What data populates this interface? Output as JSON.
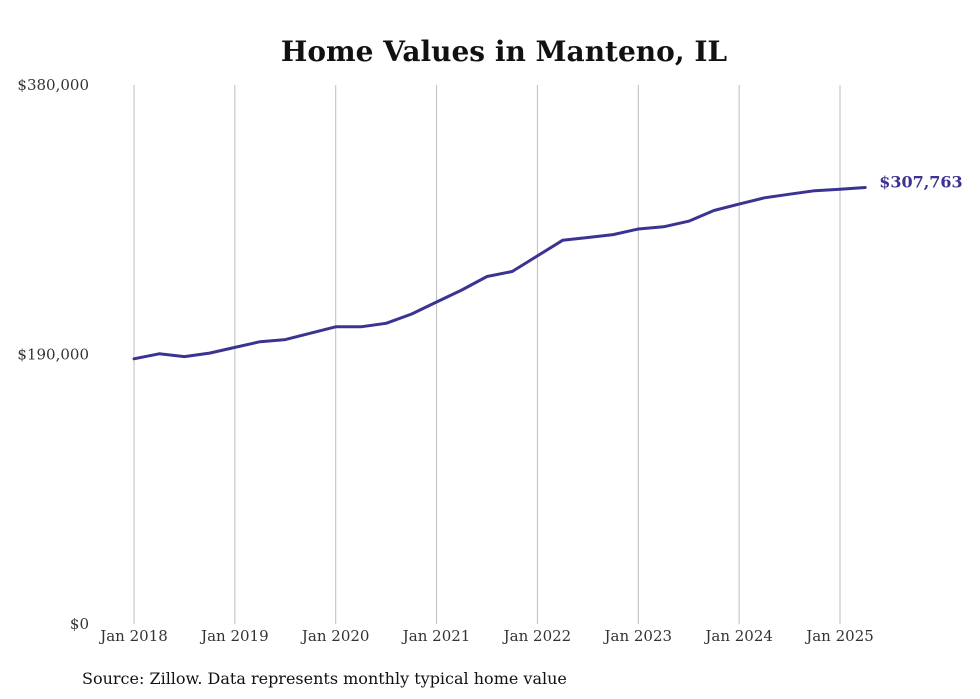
{
  "chart_data": {
    "type": "line",
    "title": "Home Values in Manteno, IL",
    "source": "Source: Zillow. Data represents monthly typical home value",
    "ylim": [
      0,
      380000
    ],
    "y_ticks": [
      {
        "value": 0,
        "label": "$0"
      },
      {
        "value": 190000,
        "label": "$190,000"
      },
      {
        "value": 380000,
        "label": "$380,000"
      }
    ],
    "x_ticks": [
      {
        "value": "2018-01",
        "label": "Jan 2018"
      },
      {
        "value": "2019-01",
        "label": "Jan 2019"
      },
      {
        "value": "2020-01",
        "label": "Jan 2020"
      },
      {
        "value": "2021-01",
        "label": "Jan 2021"
      },
      {
        "value": "2022-01",
        "label": "Jan 2022"
      },
      {
        "value": "2023-01",
        "label": "Jan 2023"
      },
      {
        "value": "2024-01",
        "label": "Jan 2024"
      },
      {
        "value": "2025-01",
        "label": "Jan 2025"
      }
    ],
    "grid": "vertical",
    "line_color": "#3a3391",
    "end_label": "$307,763",
    "series": [
      {
        "x": [
          "2018-01",
          "2018-04",
          "2018-07",
          "2018-10",
          "2019-01",
          "2019-04",
          "2019-07",
          "2019-10",
          "2020-01",
          "2020-04",
          "2020-07",
          "2020-10",
          "2021-01",
          "2021-04",
          "2021-07",
          "2021-10",
          "2022-01",
          "2022-04",
          "2022-07",
          "2022-10",
          "2023-01",
          "2023-04",
          "2023-07",
          "2023-10",
          "2024-01",
          "2024-04",
          "2024-07",
          "2024-10",
          "2025-01",
          "2025-04"
        ],
        "values": [
          187000,
          190500,
          188500,
          191000,
          195000,
          199000,
          200500,
          205000,
          209500,
          209500,
          212000,
          218500,
          227000,
          235500,
          245000,
          248500,
          259500,
          270500,
          272500,
          274500,
          278500,
          280000,
          284000,
          291500,
          296000,
          300500,
          303000,
          305500,
          306500,
          307763
        ]
      }
    ]
  }
}
